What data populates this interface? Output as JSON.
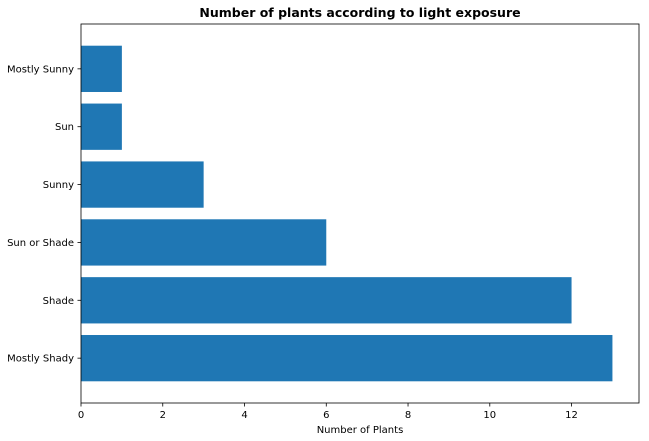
{
  "chart_data": {
    "type": "bar",
    "orientation": "horizontal",
    "title": "Number of plants according to light exposure",
    "xlabel": "Number of Plants",
    "ylabel": "",
    "categories": [
      "Mostly Shady",
      "Shade",
      "Sun or Shade",
      "Sunny",
      "Sun",
      "Mostly Sunny"
    ],
    "values": [
      13,
      12,
      6,
      3,
      1,
      1
    ],
    "xlim": [
      0,
      13.65
    ],
    "xticks": [
      0,
      2,
      4,
      6,
      8,
      10,
      12
    ],
    "xtick_labels": [
      "0",
      "2",
      "4",
      "6",
      "8",
      "10",
      "12"
    ],
    "bar_color": "#1f77b4",
    "grid": false
  }
}
